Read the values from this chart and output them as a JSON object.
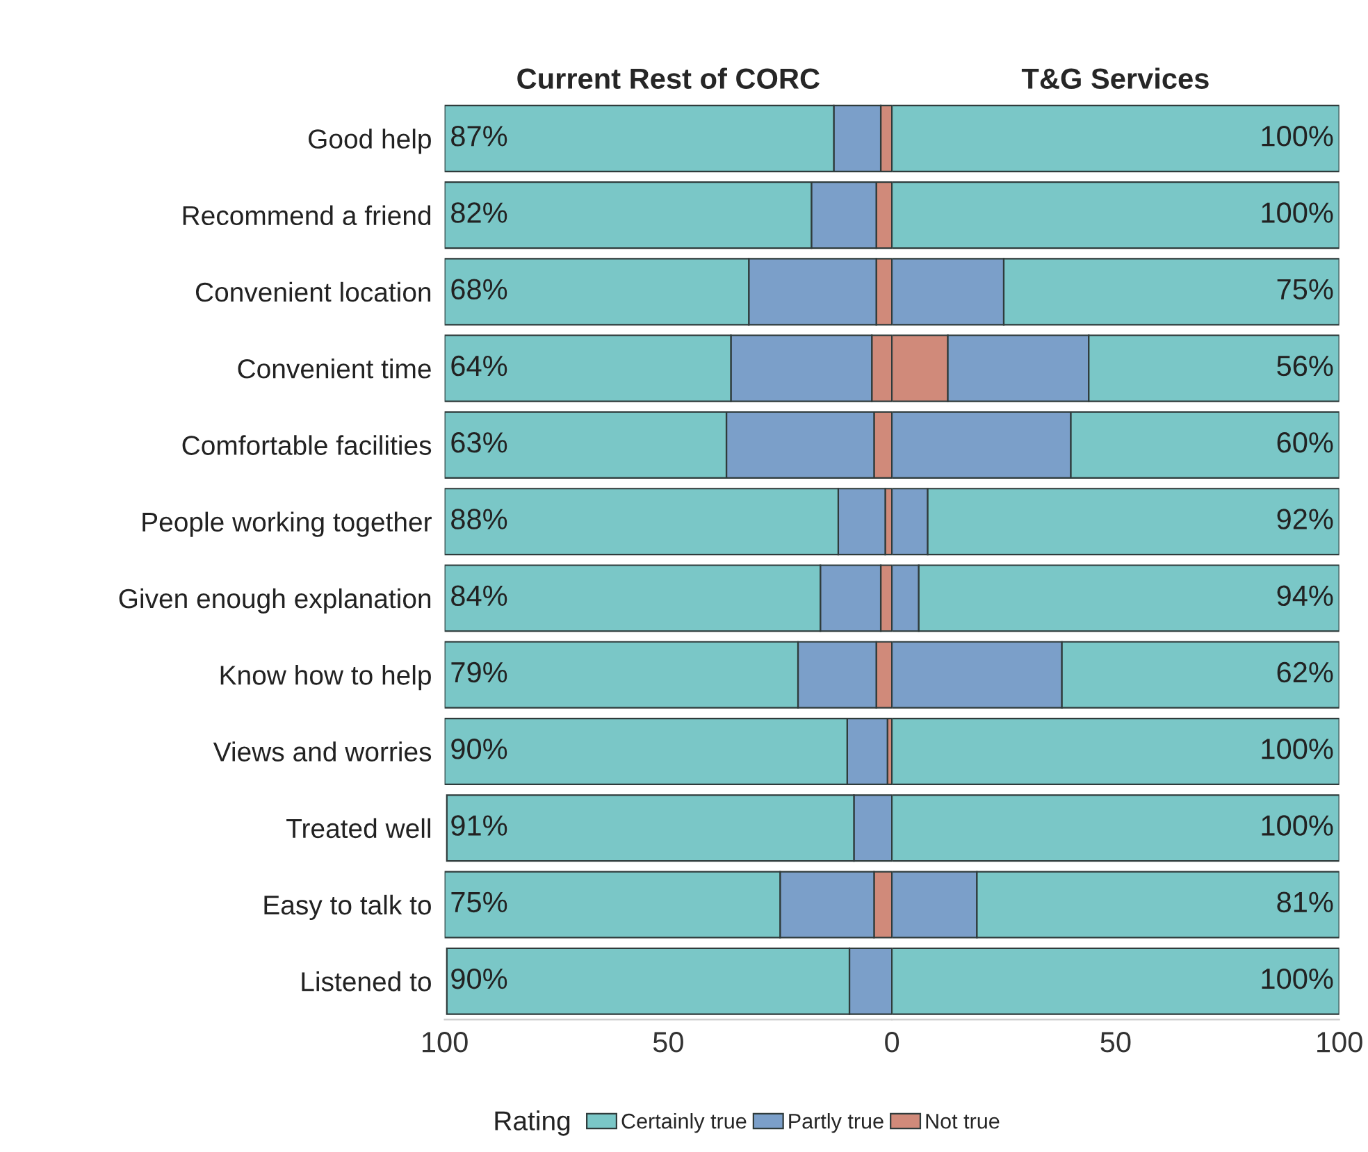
{
  "chart_data": [
    {
      "type": "bar",
      "orientation": "horizontal",
      "stacked": true,
      "title": "Current Rest of CORC",
      "categories": [
        "Good help",
        "Recommend a friend",
        "Convenient location",
        "Convenient time",
        "Comfortable facilities",
        "People working together",
        "Given enough explanation",
        "Know how to help",
        "Views and worries",
        "Treated well",
        "Easy to talk to",
        "Listened to"
      ],
      "series": [
        {
          "name": "Not true",
          "color": "#d08a7a",
          "values": [
            2.5,
            3.5,
            3.5,
            4.5,
            4,
            1.5,
            2.5,
            3.5,
            1,
            null,
            4,
            null
          ]
        },
        {
          "name": "Partly true",
          "color": "#7b9fc9",
          "values": [
            10.5,
            14.5,
            28.5,
            31.5,
            33,
            10.5,
            13.5,
            17.5,
            9,
            8.5,
            21,
            9.5
          ]
        },
        {
          "name": "Certainly true",
          "color": "#7ac7c7",
          "values": [
            87,
            82,
            68,
            64,
            63,
            88,
            84,
            79,
            90,
            91,
            75,
            90
          ],
          "value_labels": [
            "87%",
            "82%",
            "68%",
            "64%",
            "63%",
            "88%",
            "84%",
            "79%",
            "90%",
            "91%",
            "75%",
            "90%"
          ]
        }
      ],
      "xlim": [
        100,
        0
      ],
      "xticks": [
        100,
        50
      ],
      "legend": "bottom",
      "legend_title": "Rating"
    },
    {
      "type": "bar",
      "orientation": "horizontal",
      "stacked": true,
      "title": "T&G Services",
      "categories": [
        null,
        null,
        null,
        null,
        null,
        null,
        null,
        null,
        null,
        null,
        null,
        null
      ],
      "series": [
        {
          "color": "#d08a7a",
          "values": [
            0,
            0,
            0,
            12.5,
            0,
            0,
            0,
            0,
            0,
            0,
            0,
            0
          ]
        },
        {
          "color": "#7b9fc9",
          "values": [
            0,
            0,
            25,
            31.5,
            40,
            8,
            6,
            38,
            0,
            0,
            19,
            0
          ]
        },
        {
          "color": "#7ac7c7",
          "values": [
            100,
            100,
            75,
            56,
            60,
            92,
            94,
            62,
            100,
            100,
            81,
            100
          ],
          "value_labels": [
            "100%",
            "100%",
            "75%",
            "56%",
            "60%",
            "92%",
            "94%",
            "62%",
            "100%",
            "100%",
            "81%",
            "100%"
          ]
        }
      ],
      "xlim": [
        0,
        100
      ],
      "xticks": [
        0,
        50,
        100
      ],
      "tick_labels": "x"
    }
  ]
}
